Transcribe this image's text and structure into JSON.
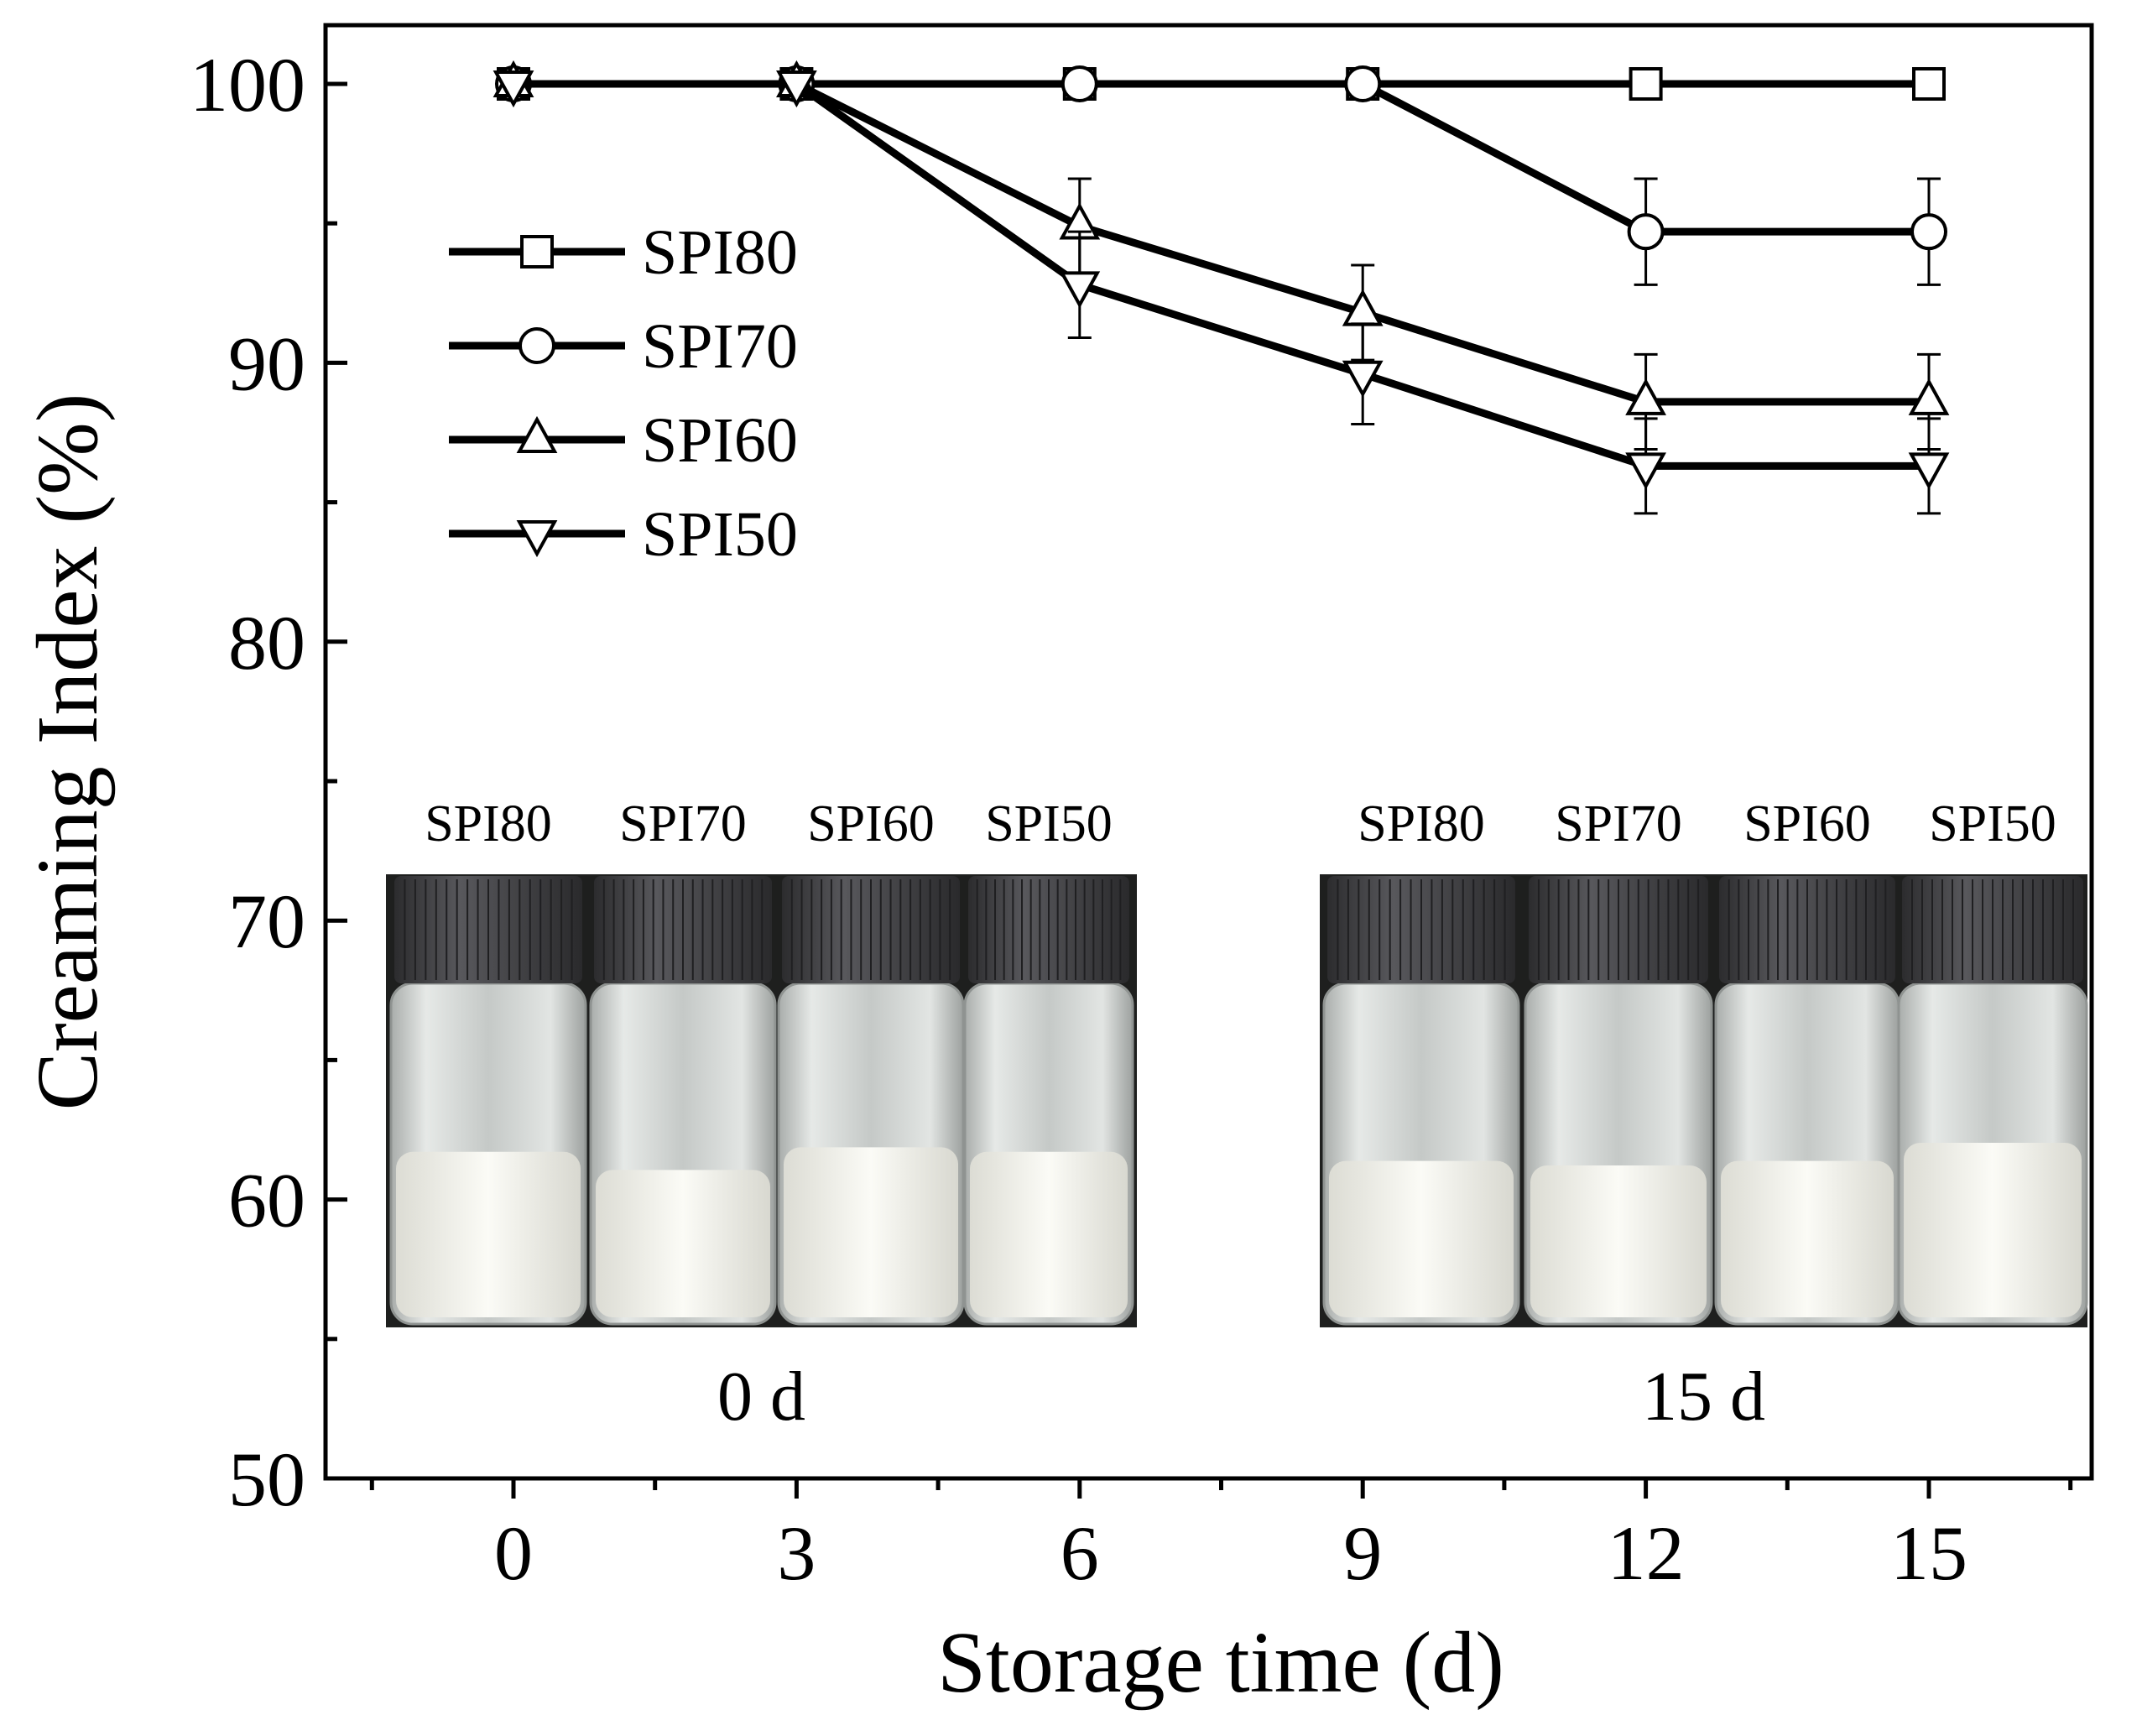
{
  "chart_data": {
    "type": "line",
    "title": "",
    "xlabel": "Storage time (d)",
    "ylabel": "Creaming Index (%)",
    "x": [
      0,
      3,
      6,
      9,
      12,
      15
    ],
    "xticks": [
      "0",
      "3",
      "6",
      "9",
      "12",
      "15"
    ],
    "yticks": [
      "50",
      "60",
      "70",
      "80",
      "90",
      "100"
    ],
    "xlim": [
      -1.5,
      16.5
    ],
    "ylim": [
      50,
      101
    ],
    "grid": false,
    "legend_position": "upper-left",
    "series": [
      {
        "name": "SPI80",
        "marker": "square",
        "values": [
          100,
          100,
          100,
          100,
          100,
          100
        ],
        "errors": [
          0,
          0,
          0,
          0,
          0,
          0
        ]
      },
      {
        "name": "SPI70",
        "marker": "circle",
        "values": [
          100,
          100,
          100,
          100,
          94.7,
          94.7
        ],
        "errors": [
          0,
          0,
          0,
          0,
          1.9,
          1.9
        ]
      },
      {
        "name": "SPI60",
        "marker": "triangle-up",
        "values": [
          100,
          100,
          94.9,
          91.8,
          88.6,
          88.6
        ],
        "errors": [
          0,
          0,
          1.7,
          1.7,
          1.7,
          1.7
        ]
      },
      {
        "name": "SPI50",
        "marker": "triangle-down",
        "values": [
          100,
          100,
          92.8,
          89.6,
          86.3,
          86.3
        ],
        "errors": [
          0,
          0,
          1.9,
          1.8,
          1.7,
          1.7
        ]
      }
    ],
    "insets": [
      {
        "caption": "0 d",
        "labels": [
          "SPI80",
          "SPI70",
          "SPI60",
          "SPI50"
        ],
        "fill_levels": [
          0.38,
          0.34,
          0.39,
          0.38
        ]
      },
      {
        "caption": "15 d",
        "labels": [
          "SPI80",
          "SPI70",
          "SPI60",
          "SPI50"
        ],
        "fill_levels": [
          0.36,
          0.35,
          0.36,
          0.4
        ]
      }
    ]
  },
  "colors": {
    "line": "#000000",
    "marker_fill": "#ffffff",
    "vial_cap": "#3a3a3c",
    "vial_glass": "#d2d6d4",
    "emulsion": "#f4f5ef",
    "photo_background": "#1e1f1e"
  }
}
